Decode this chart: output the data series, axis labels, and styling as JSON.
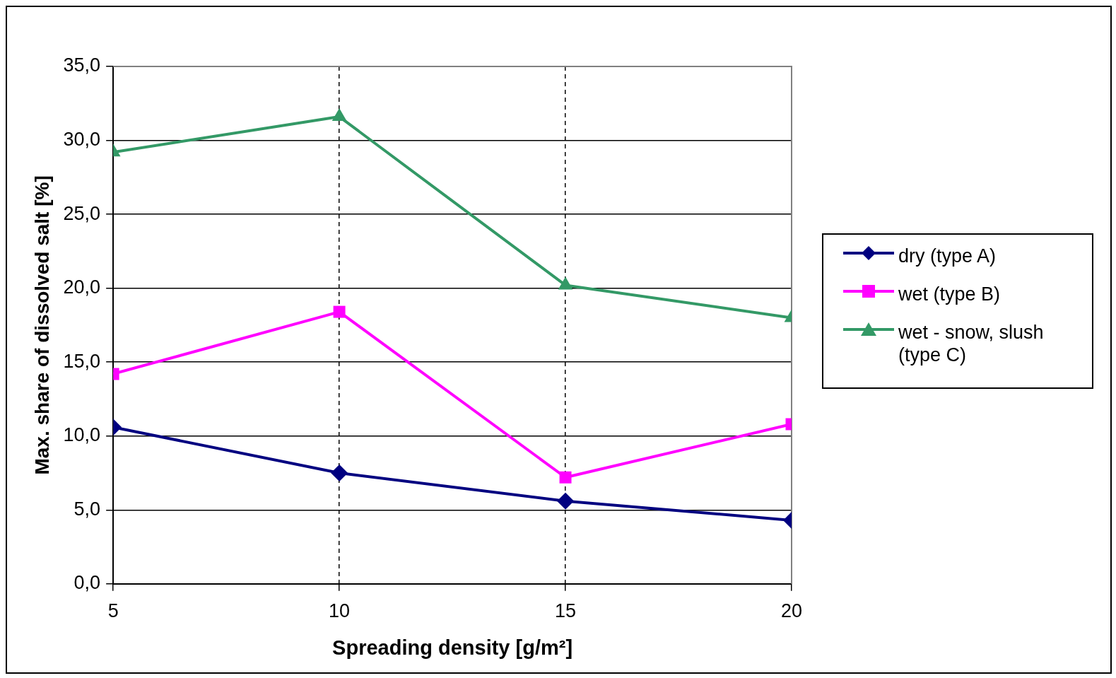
{
  "chart_data": {
    "type": "line",
    "xlabel": "Spreading density [g/m²]",
    "ylabel": "Max. share of dissolved salt [%]",
    "x": [
      5,
      10,
      15,
      20
    ],
    "series": [
      {
        "name": "dry (type A)",
        "color": "#000080",
        "marker": "diamond",
        "values": [
          10.6,
          7.5,
          5.6,
          4.3
        ]
      },
      {
        "name": "wet (type B)",
        "color": "#ff00ff",
        "marker": "square",
        "values": [
          14.2,
          18.4,
          7.2,
          10.8
        ]
      },
      {
        "name": "wet - snow, slush (type C)",
        "color": "#339966",
        "marker": "triangle",
        "values": [
          29.2,
          31.6,
          20.2,
          18.0
        ]
      }
    ],
    "xlim": [
      5,
      20
    ],
    "xticks": [
      5,
      10,
      15,
      20
    ],
    "ylim": [
      0,
      35
    ],
    "yticks": [
      {
        "value": 0,
        "label": "0,0"
      },
      {
        "value": 5,
        "label": "5,0"
      },
      {
        "value": 10,
        "label": "10,0"
      },
      {
        "value": 15,
        "label": "15,0"
      },
      {
        "value": 20,
        "label": "20,0"
      },
      {
        "value": 25,
        "label": "25,0"
      },
      {
        "value": 30,
        "label": "30,0"
      },
      {
        "value": 35,
        "label": "35,0"
      }
    ],
    "grid": true,
    "legend": "right",
    "line_style": "solid"
  }
}
